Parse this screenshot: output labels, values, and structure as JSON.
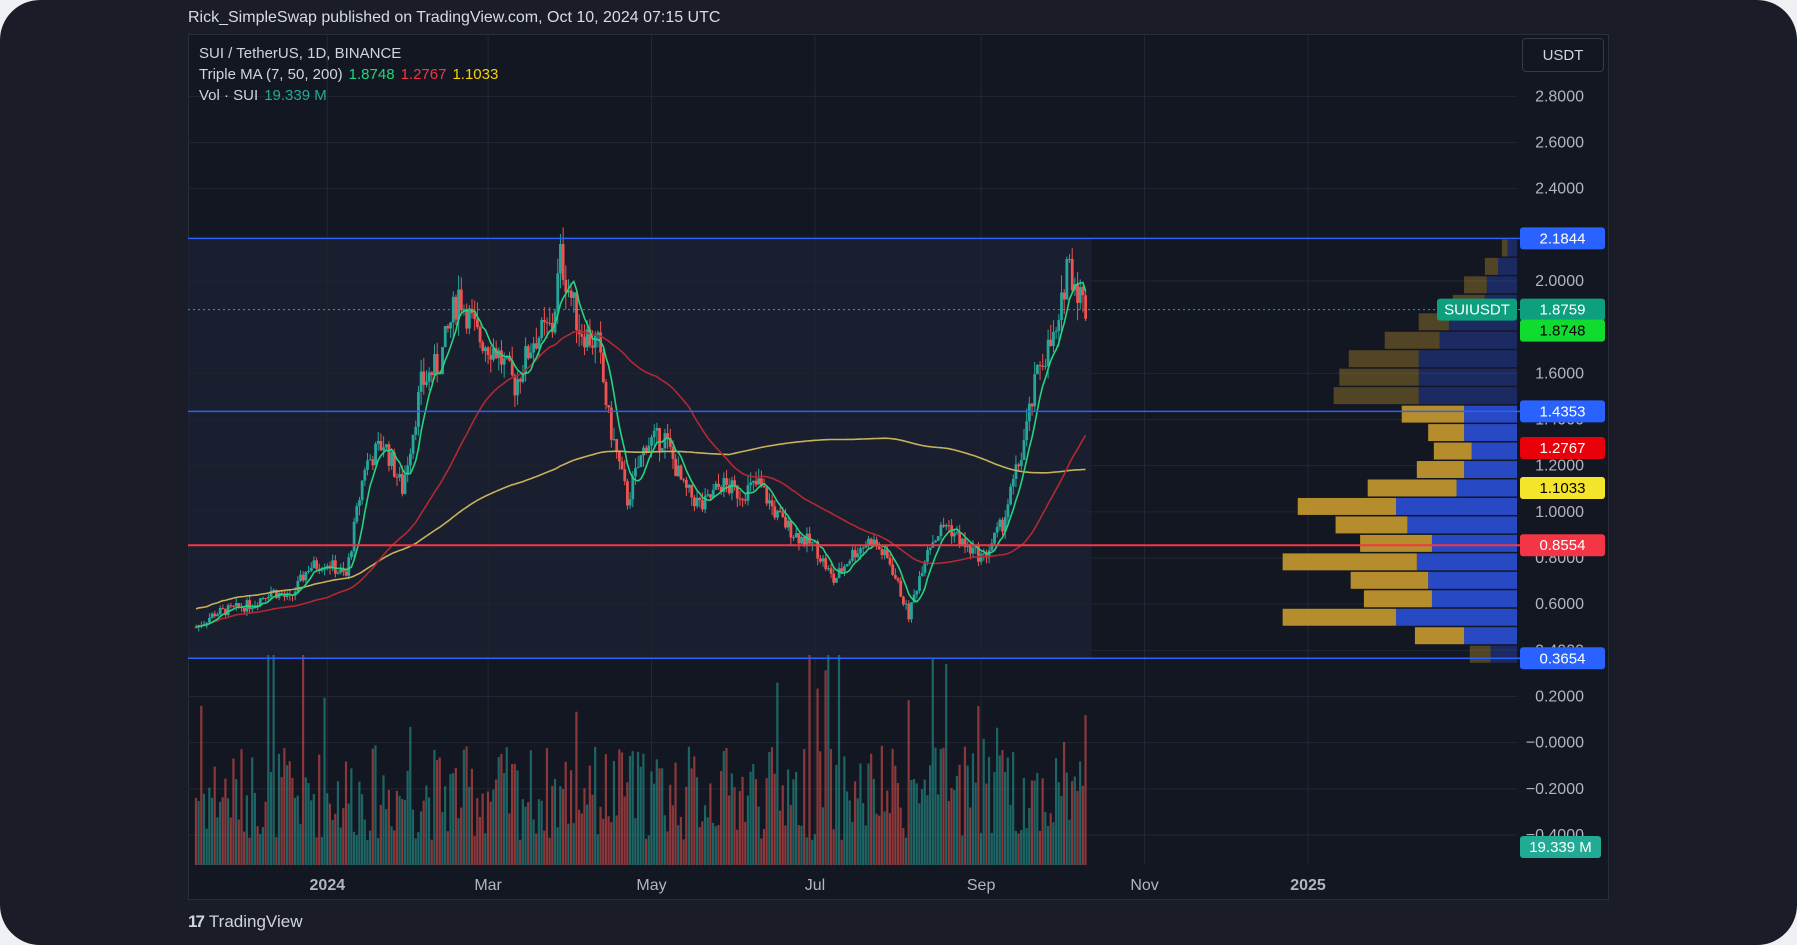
{
  "header": {
    "published_text": "Rick_SimpleSwap published on TradingView.com, Oct 10, 2024 07:15 UTC"
  },
  "legend": {
    "symbol_line": "SUI / TetherUS, 1D, BINANCE",
    "ma_label": "Triple MA (7, 50, 200)",
    "ma_values": [
      "1.8748",
      "1.2767",
      "1.1033"
    ],
    "vol_label": "Vol · SUI",
    "vol_value": "19.339 M"
  },
  "currency_button": "USDT",
  "brand": {
    "name": "TradingView",
    "logo_text": "17"
  },
  "colors": {
    "background": "#131722",
    "grid": "#232733",
    "candle_up": "#26a69a",
    "candle_down": "#ef5350",
    "ma_fast": "#26d47d",
    "ma_mid": "#b22833",
    "ma_slow": "#c7b25a",
    "hline_blue": "#2962ff",
    "hline_red": "#f23645",
    "vp_up": "#2b4fd6",
    "vp_down": "#c99a2e"
  },
  "chart_data": {
    "type": "candlestick",
    "symbol": "SUI / TetherUS",
    "interval": "1D",
    "exchange": "BINANCE",
    "y_axis": {
      "ticks": [
        "2.8000",
        "2.6000",
        "2.4000",
        "2.0000",
        "1.6000",
        "1.4000",
        "1.2000",
        "1.0000",
        "0.8000",
        "0.6000",
        "0.4000",
        "0.2000",
        "−0.0000",
        "−0.2000",
        "−0.4000"
      ],
      "ylim": [
        -0.53,
        3.07
      ],
      "scale": "linear"
    },
    "x_axis": {
      "ticks": [
        "2024",
        "Mar",
        "May",
        "Jul",
        "Sep",
        "Nov",
        "2025"
      ]
    },
    "horizontal_levels": [
      {
        "price": 2.1844,
        "label": "2.1844",
        "color": "blue"
      },
      {
        "price": 1.4353,
        "label": "1.4353",
        "color": "blue"
      },
      {
        "price": 0.8554,
        "label": "0.8554",
        "color": "red"
      },
      {
        "price": 0.3654,
        "label": "0.3654",
        "color": "blue"
      }
    ],
    "price_labels": [
      {
        "text": "SUIUSDT",
        "value": "1.8759",
        "price": 1.8759
      },
      {
        "text": "",
        "value": "1.8748",
        "price": 1.785
      },
      {
        "text": "",
        "value": "1.2767",
        "price": 1.2767
      },
      {
        "text": "",
        "value": "1.1033",
        "price": 1.1033
      }
    ],
    "volume_label": "19.339 M",
    "price_path": [
      [
        "2023-11-13",
        0.5
      ],
      [
        "2023-11-20",
        0.56
      ],
      [
        "2023-11-27",
        0.58
      ],
      [
        "2023-12-04",
        0.6
      ],
      [
        "2023-12-11",
        0.66
      ],
      [
        "2023-12-18",
        0.62
      ],
      [
        "2023-12-25",
        0.76
      ],
      [
        "2024-01-01",
        0.78
      ],
      [
        "2024-01-08",
        0.72
      ],
      [
        "2024-01-15",
        1.2
      ],
      [
        "2024-01-22",
        1.3
      ],
      [
        "2024-01-29",
        1.1
      ],
      [
        "2024-02-05",
        1.55
      ],
      [
        "2024-02-12",
        1.65
      ],
      [
        "2024-02-19",
        1.95
      ],
      [
        "2024-02-26",
        1.76
      ],
      [
        "2024-03-04",
        1.7
      ],
      [
        "2024-03-11",
        1.55
      ],
      [
        "2024-03-18",
        1.75
      ],
      [
        "2024-03-25",
        1.8
      ],
      [
        "2024-03-28",
        2.1
      ],
      [
        "2024-04-04",
        1.8
      ],
      [
        "2024-04-11",
        1.72
      ],
      [
        "2024-04-15",
        1.4
      ],
      [
        "2024-04-22",
        1.05
      ],
      [
        "2024-04-29",
        1.3
      ],
      [
        "2024-05-06",
        1.32
      ],
      [
        "2024-05-13",
        1.1
      ],
      [
        "2024-05-20",
        1.02
      ],
      [
        "2024-05-27",
        1.12
      ],
      [
        "2024-06-03",
        1.08
      ],
      [
        "2024-06-10",
        1.12
      ],
      [
        "2024-06-17",
        0.98
      ],
      [
        "2024-06-24",
        0.9
      ],
      [
        "2024-07-01",
        0.85
      ],
      [
        "2024-07-08",
        0.7
      ],
      [
        "2024-07-15",
        0.82
      ],
      [
        "2024-07-22",
        0.88
      ],
      [
        "2024-07-29",
        0.78
      ],
      [
        "2024-08-05",
        0.55
      ],
      [
        "2024-08-12",
        0.85
      ],
      [
        "2024-08-19",
        0.95
      ],
      [
        "2024-08-26",
        0.85
      ],
      [
        "2024-09-02",
        0.8
      ],
      [
        "2024-09-09",
        0.95
      ],
      [
        "2024-09-16",
        1.25
      ],
      [
        "2024-09-23",
        1.65
      ],
      [
        "2024-09-30",
        1.78
      ],
      [
        "2024-10-03",
        2.1
      ],
      [
        "2024-10-10",
        1.8759
      ]
    ],
    "moving_averages": [
      {
        "name": "MA 7",
        "last": 1.8748
      },
      {
        "name": "MA 50",
        "last": 1.2767
      },
      {
        "name": "MA 200",
        "last": 1.1033
      }
    ],
    "volume_profile": [
      {
        "price": 2.14,
        "up": 0.05,
        "down": 0.03
      },
      {
        "price": 2.06,
        "up": 0.1,
        "down": 0.07
      },
      {
        "price": 1.98,
        "up": 0.16,
        "down": 0.12
      },
      {
        "price": 1.9,
        "up": 0.17,
        "down": 0.17
      },
      {
        "price": 1.82,
        "up": 0.36,
        "down": 0.16
      },
      {
        "price": 1.74,
        "up": 0.41,
        "down": 0.29
      },
      {
        "price": 1.66,
        "up": 0.52,
        "down": 0.37
      },
      {
        "price": 1.58,
        "up": 0.52,
        "down": 0.42
      },
      {
        "price": 1.5,
        "up": 0.52,
        "down": 0.45
      },
      {
        "price": 1.42,
        "up": 0.28,
        "down": 0.33
      },
      {
        "price": 1.34,
        "up": 0.28,
        "down": 0.19
      },
      {
        "price": 1.26,
        "up": 0.24,
        "down": 0.2
      },
      {
        "price": 1.18,
        "up": 0.28,
        "down": 0.25
      },
      {
        "price": 1.1,
        "up": 0.32,
        "down": 0.47
      },
      {
        "price": 1.02,
        "up": 0.64,
        "down": 0.52
      },
      {
        "price": 0.94,
        "up": 0.58,
        "down": 0.38
      },
      {
        "price": 0.86,
        "up": 0.45,
        "down": 0.38
      },
      {
        "price": 0.78,
        "up": 0.53,
        "down": 0.71
      },
      {
        "price": 0.7,
        "up": 0.47,
        "down": 0.41
      },
      {
        "price": 0.62,
        "up": 0.45,
        "down": 0.36
      },
      {
        "price": 0.54,
        "up": 0.64,
        "down": 0.6
      },
      {
        "price": 0.46,
        "up": 0.28,
        "down": 0.26
      },
      {
        "price": 0.38,
        "up": 0.14,
        "down": 0.11
      }
    ]
  }
}
